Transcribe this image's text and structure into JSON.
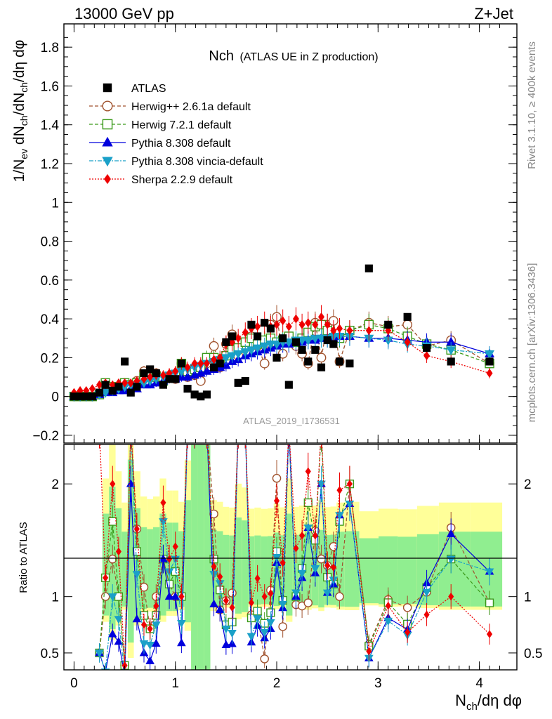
{
  "header": {
    "left": "13000 GeV pp",
    "right": "Z+Jet"
  },
  "side_labels": {
    "rivet": "Rivet 3.1.10, ≥ 400k events",
    "mcplots": "mcplots.cern.ch [arXiv:1306.3436]"
  },
  "watermark": "ATLAS_2019_I1736531",
  "colors": {
    "band_inner": "#90ee90",
    "band_outer": "#ffff99",
    "herwigpp": "#a0522d",
    "herwig7": "#3a9a1a",
    "pythia": "#0000dd",
    "vincia": "#1aa0c8",
    "sherpa": "#ee0000",
    "data": "#000000"
  },
  "chart_data": {
    "type": "scatter",
    "title_main": "Nch",
    "title_sub": "(ATLAS UE in Z production)",
    "xlabel": "N",
    "xlabel_sub": "ch",
    "xlabel_rest": "/dη dφ",
    "ylabel": "1/N_ev dN_ch/dN_ch/dη dφ",
    "xlim": [
      -0.1,
      4.37
    ],
    "xticks": [
      "0",
      "1",
      "2",
      "3",
      "4"
    ],
    "main": {
      "ylim": [
        -0.24,
        1.92
      ],
      "yticks": [
        "−0.2",
        "0",
        "0.2",
        "0.4",
        "0.6",
        "0.8",
        "1",
        "1.2",
        "1.4",
        "1.6",
        "1.8"
      ]
    },
    "ratio": {
      "ylabel": "Ratio to ATLAS",
      "ylim": [
        0.35,
        2.35
      ],
      "yticks": [
        "0.5",
        "1",
        "2"
      ]
    },
    "legend": [
      {
        "key": "data",
        "label": "ATLAS"
      },
      {
        "key": "herwigpp",
        "label": "Herwig++ 2.6.1a default"
      },
      {
        "key": "herwig7",
        "label": "Herwig 7.2.1 default"
      },
      {
        "key": "pythia",
        "label": "Pythia 8.308 default"
      },
      {
        "key": "vincia",
        "label": "Pythia 8.308 vincia-default"
      },
      {
        "key": "sherpa",
        "label": "Sherpa 2.2.9 default"
      }
    ],
    "x": [
      0.0,
      0.06,
      0.12,
      0.18,
      0.25,
      0.31,
      0.38,
      0.44,
      0.5,
      0.56,
      0.62,
      0.69,
      0.75,
      0.81,
      0.88,
      0.94,
      1.0,
      1.06,
      1.12,
      1.19,
      1.25,
      1.31,
      1.38,
      1.44,
      1.5,
      1.56,
      1.62,
      1.69,
      1.75,
      1.81,
      1.88,
      1.94,
      2.0,
      2.06,
      2.12,
      2.19,
      2.25,
      2.31,
      2.38,
      2.44,
      2.5,
      2.56,
      2.62,
      2.72,
      2.91,
      3.1,
      3.29,
      3.48,
      3.72,
      4.1
    ],
    "data": [
      0.0,
      0.0,
      0.0,
      0.0,
      0.02,
      0.06,
      0.03,
      0.05,
      0.18,
      0.02,
      0.05,
      0.12,
      0.14,
      0.12,
      0.06,
      0.09,
      0.09,
      0.17,
      0.04,
      0.01,
      0.0,
      0.01,
      0.15,
      0.17,
      0.28,
      0.31,
      0.07,
      0.08,
      0.37,
      0.31,
      0.38,
      0.35,
      0.2,
      0.3,
      0.06,
      0.28,
      0.24,
      0.18,
      0.24,
      0.15,
      0.29,
      0.27,
      0.18,
      0.17,
      0.66,
      0.37,
      0.41,
      0.25,
      0.18,
      0.18
    ],
    "series": [
      {
        "key": "herwigpp",
        "name": "Herwig++ 2.6.1a default",
        "marker": "circle",
        "dash": "5,3",
        "values": [
          0.0,
          0.0,
          0.0,
          0.0,
          0.01,
          0.06,
          0.04,
          0.05,
          0.07,
          0.05,
          0.08,
          0.13,
          0.1,
          0.12,
          0.08,
          0.1,
          0.09,
          0.17,
          0.1,
          0.11,
          0.08,
          0.17,
          0.26,
          0.15,
          0.27,
          0.32,
          0.21,
          0.25,
          0.31,
          0.26,
          0.17,
          0.37,
          0.41,
          0.22,
          0.28,
          0.26,
          0.22,
          0.17,
          0.38,
          0.2,
          0.37,
          0.39,
          0.18,
          0.34,
          0.38,
          0.36,
          0.37,
          0.26,
          0.29,
          0.17
        ]
      },
      {
        "key": "herwig7",
        "name": "Herwig 7.2.1 default",
        "marker": "square",
        "dash": "5,3",
        "values": [
          0.0,
          0.0,
          0.0,
          0.0,
          0.01,
          0.07,
          0.05,
          0.05,
          0.07,
          0.06,
          0.07,
          0.1,
          0.1,
          0.1,
          0.08,
          0.1,
          0.11,
          0.17,
          0.13,
          0.14,
          0.15,
          0.2,
          0.2,
          0.18,
          0.21,
          0.24,
          0.25,
          0.28,
          0.3,
          0.27,
          0.29,
          0.3,
          0.28,
          0.29,
          0.31,
          0.28,
          0.3,
          0.33,
          0.36,
          0.37,
          0.34,
          0.3,
          0.3,
          0.34,
          0.37,
          0.35,
          0.31,
          0.27,
          0.24,
          0.17
        ]
      },
      {
        "key": "pythia",
        "name": "Pythia 8.308 default",
        "marker": "triangle-up",
        "dash": "",
        "values": [
          0.0,
          0.0,
          0.0,
          0.0,
          0.01,
          0.02,
          0.02,
          0.03,
          0.03,
          0.04,
          0.04,
          0.06,
          0.06,
          0.07,
          0.08,
          0.09,
          0.09,
          0.1,
          0.1,
          0.11,
          0.12,
          0.13,
          0.14,
          0.15,
          0.16,
          0.18,
          0.19,
          0.21,
          0.22,
          0.23,
          0.24,
          0.25,
          0.26,
          0.27,
          0.27,
          0.28,
          0.28,
          0.29,
          0.29,
          0.3,
          0.3,
          0.3,
          0.31,
          0.31,
          0.3,
          0.3,
          0.29,
          0.28,
          0.28,
          0.22
        ]
      },
      {
        "key": "vincia",
        "name": "Pythia 8.308 vincia-default",
        "marker": "triangle-down",
        "dash": "6,2,2,2",
        "values": [
          0.0,
          0.0,
          0.0,
          0.0,
          0.01,
          0.02,
          0.03,
          0.04,
          0.05,
          0.06,
          0.06,
          0.07,
          0.08,
          0.09,
          0.1,
          0.11,
          0.12,
          0.13,
          0.14,
          0.15,
          0.16,
          0.17,
          0.18,
          0.19,
          0.2,
          0.21,
          0.22,
          0.23,
          0.24,
          0.25,
          0.26,
          0.27,
          0.27,
          0.28,
          0.28,
          0.29,
          0.29,
          0.29,
          0.3,
          0.3,
          0.3,
          0.31,
          0.31,
          0.31,
          0.3,
          0.29,
          0.27,
          0.26,
          0.24,
          0.22
        ]
      },
      {
        "key": "sherpa",
        "name": "Sherpa 2.2.9 default",
        "marker": "diamond",
        "dash": "2,2",
        "values": [
          0.02,
          0.03,
          0.03,
          0.04,
          0.06,
          0.07,
          0.06,
          0.07,
          0.07,
          0.07,
          0.08,
          0.09,
          0.1,
          0.11,
          0.11,
          0.12,
          0.13,
          0.17,
          0.15,
          0.17,
          0.17,
          0.17,
          0.19,
          0.2,
          0.27,
          0.28,
          0.3,
          0.33,
          0.35,
          0.36,
          0.38,
          0.36,
          0.37,
          0.39,
          0.36,
          0.4,
          0.37,
          0.38,
          0.37,
          0.41,
          0.37,
          0.34,
          0.35,
          0.34,
          0.34,
          0.34,
          0.28,
          0.21,
          0.18,
          0.12
        ]
      }
    ]
  }
}
